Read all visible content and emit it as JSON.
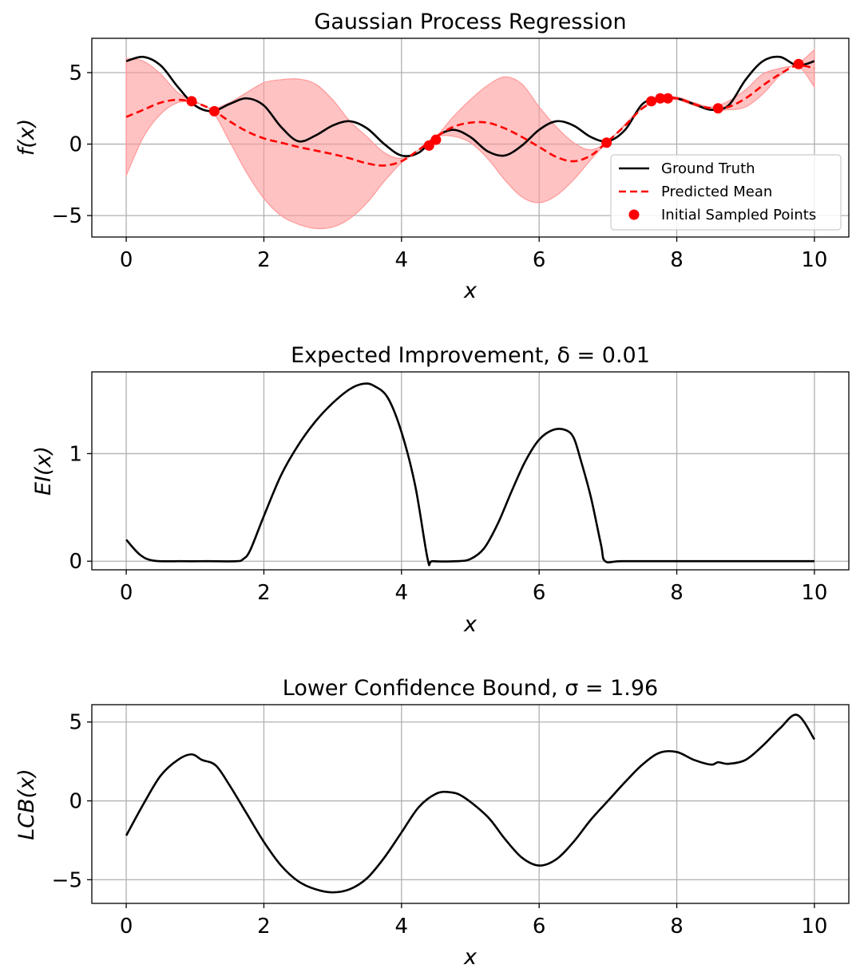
{
  "chart_data": [
    {
      "type": "line",
      "title": "Gaussian Process Regression",
      "xlabel": "x",
      "ylabel": "f(x)",
      "xlim": [
        -0.5,
        10.5
      ],
      "ylim": [
        -6.5,
        7.4
      ],
      "xticks": [
        0,
        2,
        4,
        6,
        8,
        10
      ],
      "yticks": [
        -5,
        0,
        5
      ],
      "ytick_labels": [
        "−5",
        "0",
        "5"
      ],
      "grid": true,
      "legend": {
        "placement": "lower-right",
        "entries": [
          "Ground Truth",
          "Predicted Mean",
          "Initial Sampled Points"
        ]
      },
      "series": [
        {
          "name": "Ground Truth",
          "style": "solid",
          "color": "#000000",
          "x": [
            0,
            0.25,
            0.5,
            0.75,
            1.0,
            1.25,
            1.5,
            1.75,
            2.0,
            2.25,
            2.5,
            2.75,
            3.0,
            3.25,
            3.5,
            3.75,
            4.0,
            4.25,
            4.5,
            4.75,
            5.0,
            5.25,
            5.5,
            5.75,
            6.0,
            6.25,
            6.5,
            6.75,
            7.0,
            7.25,
            7.5,
            7.75,
            8.0,
            8.25,
            8.5,
            8.75,
            9.0,
            9.25,
            9.5,
            9.75,
            10.0
          ],
          "y": [
            5.8,
            6.1,
            5.5,
            4.0,
            2.7,
            2.3,
            2.8,
            3.2,
            2.7,
            1.2,
            0.2,
            0.6,
            1.3,
            1.6,
            1.1,
            0.0,
            -0.8,
            -0.6,
            0.5,
            1.0,
            0.5,
            -0.5,
            -0.8,
            -0.1,
            1.0,
            1.6,
            1.3,
            0.5,
            0.2,
            1.0,
            2.8,
            3.2,
            3.2,
            2.8,
            2.4,
            2.7,
            4.5,
            5.8,
            6.1,
            5.5,
            5.8
          ]
        },
        {
          "name": "Predicted Mean",
          "style": "dashed",
          "color": "#ff0000",
          "x": [
            0,
            0.25,
            0.5,
            0.75,
            1.0,
            1.25,
            1.5,
            1.75,
            2.0,
            2.25,
            2.5,
            2.75,
            3.0,
            3.25,
            3.5,
            3.75,
            4.0,
            4.25,
            4.5,
            4.75,
            5.0,
            5.25,
            5.5,
            5.75,
            6.0,
            6.25,
            6.5,
            6.75,
            7.0,
            7.25,
            7.5,
            7.75,
            8.0,
            8.25,
            8.5,
            8.75,
            9.0,
            9.25,
            9.5,
            9.75,
            10.0
          ],
          "y": [
            1.9,
            2.4,
            2.9,
            3.1,
            2.9,
            2.4,
            1.6,
            0.9,
            0.4,
            0.1,
            -0.2,
            -0.45,
            -0.7,
            -1.0,
            -1.35,
            -1.5,
            -1.2,
            -0.4,
            0.5,
            1.2,
            1.5,
            1.5,
            1.1,
            0.5,
            -0.2,
            -0.9,
            -1.2,
            -0.8,
            0.2,
            1.3,
            2.5,
            3.1,
            3.2,
            2.8,
            2.5,
            2.6,
            3.2,
            4.1,
            4.9,
            5.5,
            5.3
          ]
        }
      ],
      "confidence_band": {
        "color": "#ff9999",
        "x": [
          0,
          0.25,
          0.5,
          0.75,
          1.0,
          1.25,
          1.5,
          1.75,
          2.0,
          2.25,
          2.5,
          2.75,
          3.0,
          3.25,
          3.5,
          3.75,
          4.0,
          4.25,
          4.5,
          4.75,
          5.0,
          5.25,
          5.5,
          5.75,
          6.0,
          6.25,
          6.5,
          6.75,
          7.0,
          7.25,
          7.5,
          7.75,
          8.0,
          8.25,
          8.5,
          8.75,
          9.0,
          9.25,
          9.5,
          9.75,
          10.0
        ],
        "lower": [
          -2.2,
          0.5,
          2.1,
          2.9,
          2.9,
          2.3,
          0.2,
          -2.0,
          -3.8,
          -5.0,
          -5.6,
          -5.9,
          -5.8,
          -5.2,
          -4.1,
          -2.6,
          -1.3,
          -0.4,
          0.5,
          0.55,
          0.1,
          -1.0,
          -2.5,
          -3.7,
          -4.1,
          -3.6,
          -2.5,
          -1.1,
          0.2,
          1.3,
          2.5,
          3.0,
          3.1,
          2.7,
          2.4,
          2.4,
          2.6,
          3.5,
          4.8,
          5.5,
          4.0
        ],
        "upper": [
          6.0,
          5.8,
          4.9,
          3.6,
          3.0,
          2.5,
          2.9,
          3.6,
          4.3,
          4.5,
          4.55,
          4.2,
          3.1,
          1.6,
          0.5,
          -0.6,
          -1.0,
          -0.4,
          0.5,
          1.9,
          3.1,
          4.1,
          4.7,
          4.2,
          2.6,
          1.2,
          0.1,
          -0.4,
          0.2,
          1.4,
          2.6,
          3.2,
          3.3,
          2.9,
          2.6,
          3.0,
          3.8,
          4.9,
          5.3,
          5.6,
          6.6
        ]
      },
      "points": {
        "name": "Initial Sampled Points",
        "color": "#ff0000",
        "x": [
          0.95,
          1.28,
          4.4,
          4.5,
          6.98,
          7.63,
          7.76,
          7.87,
          8.6,
          9.77
        ],
        "y": [
          3.0,
          2.3,
          -0.1,
          0.3,
          0.1,
          3.0,
          3.2,
          3.2,
          2.5,
          5.6
        ]
      }
    },
    {
      "type": "line",
      "title": "Expected Improvement, δ = 0.01",
      "xlabel": "x",
      "ylabel": "EI(x)",
      "xlim": [
        -0.5,
        10.5
      ],
      "ylim": [
        -0.08,
        1.76
      ],
      "xticks": [
        0,
        2,
        4,
        6,
        8,
        10
      ],
      "yticks": [
        0,
        1
      ],
      "ytick_labels": [
        "0",
        "1"
      ],
      "grid": true,
      "series": [
        {
          "color": "#000000",
          "style": "solid",
          "x": [
            0,
            0.2,
            0.4,
            0.8,
            1.2,
            1.6,
            1.7,
            1.8,
            2.0,
            2.25,
            2.5,
            2.75,
            3.0,
            3.25,
            3.45,
            3.6,
            3.8,
            4.0,
            4.2,
            4.38,
            4.45,
            4.8,
            5.0,
            5.2,
            5.4,
            5.6,
            5.8,
            6.0,
            6.2,
            6.38,
            6.5,
            6.6,
            6.75,
            6.9,
            6.96,
            7.2,
            8.0,
            9.0,
            10.0
          ],
          "y": [
            0.2,
            0.06,
            0.005,
            0.0,
            0.0,
            0.0,
            0.02,
            0.1,
            0.42,
            0.8,
            1.08,
            1.3,
            1.47,
            1.6,
            1.65,
            1.63,
            1.52,
            1.2,
            0.7,
            0.02,
            0.0,
            0.0,
            0.02,
            0.12,
            0.35,
            0.65,
            0.93,
            1.13,
            1.22,
            1.22,
            1.15,
            0.95,
            0.6,
            0.15,
            0.0,
            0.0,
            0.0,
            0.0,
            0.0
          ]
        }
      ]
    },
    {
      "type": "line",
      "title": "Lower Confidence Bound, σ = 1.96",
      "xlabel": "x",
      "ylabel": "LCB(x)",
      "xlim": [
        -0.5,
        10.5
      ],
      "ylim": [
        -6.5,
        6.1
      ],
      "xticks": [
        0,
        2,
        4,
        6,
        8,
        10
      ],
      "yticks": [
        -5,
        0,
        5
      ],
      "ytick_labels": [
        "−5",
        "0",
        "5"
      ],
      "grid": true,
      "series": [
        {
          "color": "#000000",
          "style": "solid",
          "x": [
            0,
            0.25,
            0.5,
            0.75,
            0.95,
            1.1,
            1.3,
            1.5,
            1.75,
            2.0,
            2.25,
            2.5,
            2.75,
            3.0,
            3.25,
            3.5,
            3.75,
            4.0,
            4.25,
            4.5,
            4.7,
            4.9,
            5.25,
            5.5,
            5.75,
            6.0,
            6.25,
            6.5,
            6.75,
            7.0,
            7.25,
            7.5,
            7.75,
            8.0,
            8.25,
            8.5,
            8.6,
            8.75,
            9.0,
            9.25,
            9.5,
            9.75,
            10.0
          ],
          "y": [
            -2.2,
            -0.2,
            1.6,
            2.6,
            2.95,
            2.6,
            2.25,
            1.0,
            -0.8,
            -2.6,
            -4.1,
            -5.1,
            -5.6,
            -5.8,
            -5.6,
            -4.9,
            -3.6,
            -2.0,
            -0.4,
            0.45,
            0.55,
            0.25,
            -1.0,
            -2.4,
            -3.6,
            -4.1,
            -3.7,
            -2.6,
            -1.2,
            0.0,
            1.2,
            2.3,
            3.05,
            3.1,
            2.6,
            2.3,
            2.45,
            2.35,
            2.6,
            3.5,
            4.6,
            5.45,
            3.9
          ]
        }
      ]
    }
  ]
}
